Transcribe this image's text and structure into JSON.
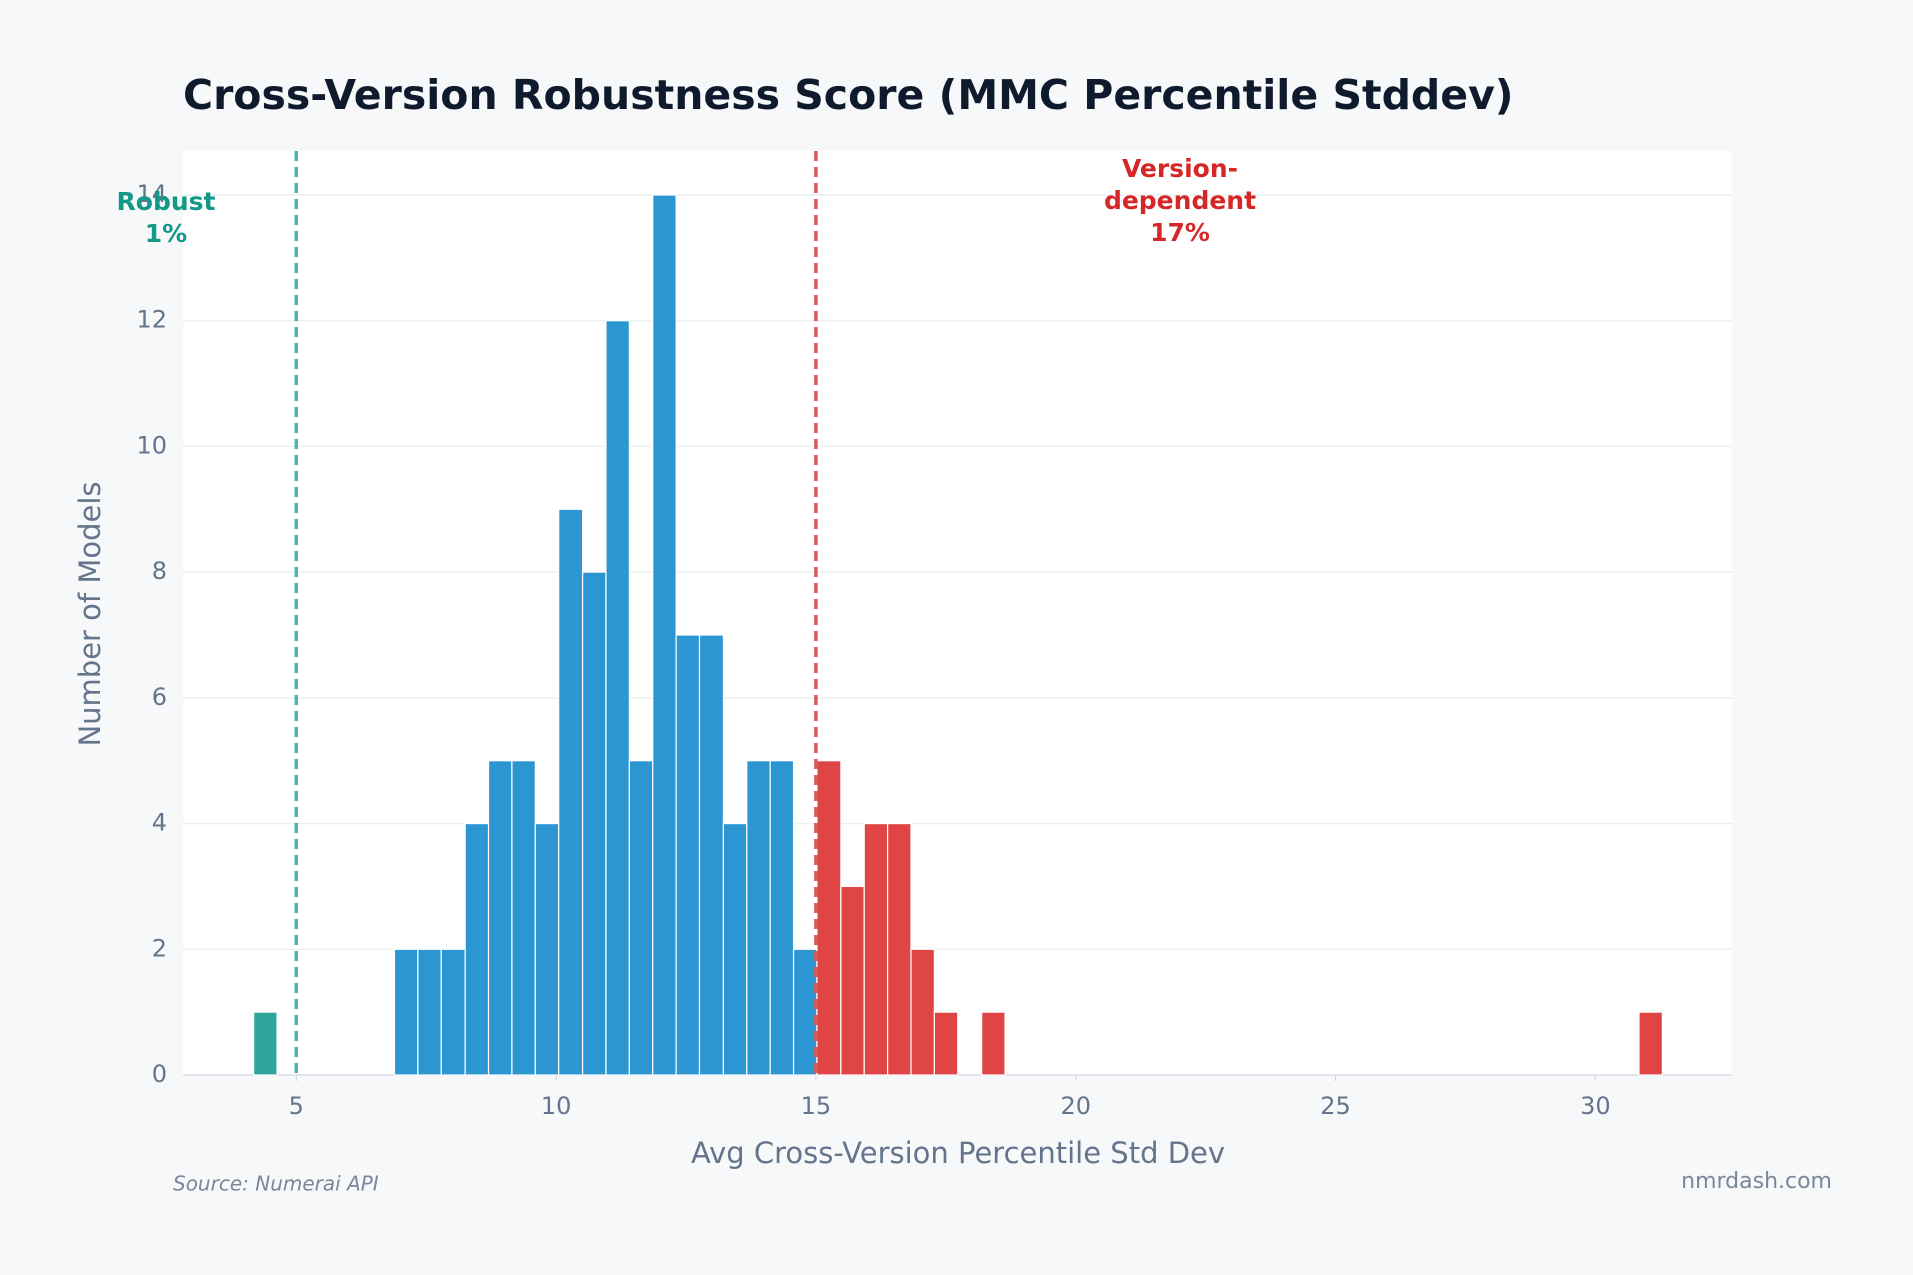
{
  "chart_data": {
    "type": "histogram",
    "title": "Cross-Version Robustness Score (MMC Percentile Stddev)",
    "x_label": "Avg Cross-Version Percentile Std Dev",
    "y_label": "Number of Models",
    "bins": [
      4.18,
      4.63,
      5.08,
      5.54,
      5.99,
      6.44,
      6.89,
      7.34,
      7.79,
      8.25,
      8.7,
      9.15,
      9.6,
      10.05,
      10.51,
      10.96,
      11.41,
      11.86,
      12.31,
      12.76,
      13.22,
      13.67,
      14.12,
      14.57,
      15.02,
      15.48,
      15.93,
      16.38,
      16.83,
      17.28,
      17.73,
      18.19,
      18.64,
      19.09,
      19.54,
      19.99,
      20.44,
      20.9,
      21.35,
      21.8,
      22.25,
      22.7,
      23.16,
      23.61,
      24.06,
      24.51,
      24.96,
      25.41,
      25.87,
      26.32,
      26.77,
      27.22,
      27.67,
      28.13,
      28.58,
      29.03,
      29.48,
      29.93,
      30.38,
      30.84,
      31.29
    ],
    "values": [
      1,
      0,
      0,
      0,
      0,
      0,
      2,
      2,
      2,
      4,
      5,
      5,
      4,
      9,
      8,
      12,
      5,
      14,
      7,
      7,
      4,
      5,
      5,
      2,
      5,
      3,
      4,
      4,
      2,
      1,
      0,
      1,
      0,
      0,
      0,
      0,
      0,
      0,
      0,
      0,
      0,
      0,
      0,
      0,
      0,
      0,
      0,
      0,
      0,
      0,
      0,
      0,
      0,
      0,
      0,
      0,
      0,
      0,
      0,
      1
    ],
    "colors": {
      "low": "#2ea59a",
      "mid": "#2b96d1",
      "high": "#e04545"
    },
    "thresholds": [
      {
        "value": 5,
        "color": "#4db6a5",
        "annotation": [
          "Robust",
          "1%"
        ]
      },
      {
        "value": 15,
        "color": "#d95a5a",
        "annotation": [
          "Version-",
          "dependent",
          "17%"
        ]
      }
    ],
    "xlim": [
      2.82,
      32.63
    ],
    "xticks": [
      5,
      10,
      15,
      20,
      25,
      30
    ],
    "ylim": [
      0,
      14.7
    ],
    "yticks": [
      0,
      2,
      4,
      6,
      8,
      10,
      12,
      14
    ],
    "grid": true,
    "source": "Source: Numerai API",
    "watermark": "nmrdash.com"
  }
}
